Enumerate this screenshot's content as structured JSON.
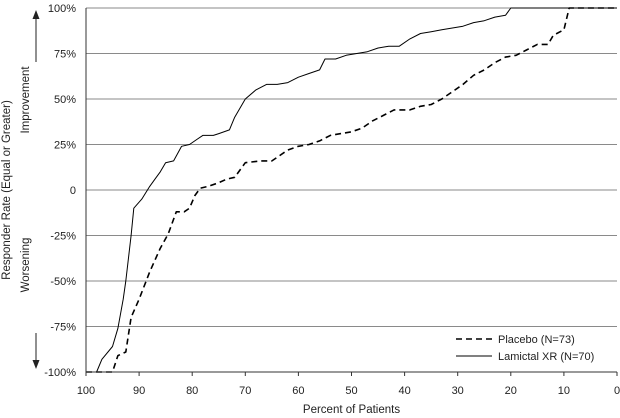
{
  "chart_data": {
    "type": "line",
    "xlabel": "Percent of Patients",
    "ylabel": "Responder Rate (Equal or Greater)",
    "annotations": {
      "upper": "Improvement",
      "lower": "Worsening"
    },
    "xlim": [
      100,
      0
    ],
    "ylim": [
      -100,
      100
    ],
    "x_ticks": [
      "100",
      "90",
      "80",
      "70",
      "60",
      "50",
      "40",
      "30",
      "20",
      "10",
      "0"
    ],
    "y_ticks": [
      "100%",
      "75%",
      "50%",
      "25%",
      "0",
      "-25%",
      "-50%",
      "-75%",
      "-100%"
    ],
    "grid": "horizontal",
    "legend_position": "bottom-right",
    "series": [
      {
        "name": "Placebo (N=73)",
        "style": "dashed",
        "color": "#000000",
        "points": [
          [
            100,
            -100
          ],
          [
            95,
            -100
          ],
          [
            94,
            -91
          ],
          [
            92.5,
            -89
          ],
          [
            91.5,
            -70
          ],
          [
            90,
            -60
          ],
          [
            88,
            -45
          ],
          [
            86,
            -32
          ],
          [
            84.5,
            -24
          ],
          [
            83,
            -12
          ],
          [
            81.5,
            -12
          ],
          [
            80.5,
            -10
          ],
          [
            79.5,
            -3
          ],
          [
            78.5,
            1
          ],
          [
            77,
            2
          ],
          [
            75,
            4
          ],
          [
            73.5,
            6
          ],
          [
            72,
            7
          ],
          [
            70,
            15
          ],
          [
            67,
            16
          ],
          [
            65,
            16
          ],
          [
            62,
            22
          ],
          [
            60,
            24
          ],
          [
            58,
            25
          ],
          [
            56,
            27
          ],
          [
            54,
            30
          ],
          [
            52,
            31
          ],
          [
            50,
            32
          ],
          [
            48,
            34
          ],
          [
            46,
            38
          ],
          [
            44,
            41
          ],
          [
            42,
            44
          ],
          [
            39,
            44
          ],
          [
            37,
            46
          ],
          [
            35,
            47
          ],
          [
            33,
            50
          ],
          [
            31,
            54
          ],
          [
            29,
            58
          ],
          [
            27,
            63
          ],
          [
            25,
            66
          ],
          [
            23,
            70
          ],
          [
            21,
            73
          ],
          [
            19,
            74
          ],
          [
            17,
            77
          ],
          [
            15,
            80
          ],
          [
            13,
            80
          ],
          [
            12,
            85
          ],
          [
            10,
            88
          ],
          [
            9,
            100
          ],
          [
            0,
            100
          ]
        ]
      },
      {
        "name": "Lamictal XR (N=70)",
        "style": "solid",
        "color": "#000000",
        "points": [
          [
            100,
            -100
          ],
          [
            98,
            -100
          ],
          [
            97,
            -93
          ],
          [
            95,
            -86
          ],
          [
            94,
            -76
          ],
          [
            93,
            -60
          ],
          [
            92.5,
            -50
          ],
          [
            91.5,
            -25
          ],
          [
            91,
            -10
          ],
          [
            89.5,
            -5
          ],
          [
            88,
            2
          ],
          [
            87,
            6
          ],
          [
            86,
            10
          ],
          [
            85,
            15
          ],
          [
            83.5,
            16
          ],
          [
            82,
            24
          ],
          [
            80.5,
            25
          ],
          [
            79,
            28
          ],
          [
            78,
            30
          ],
          [
            76,
            30
          ],
          [
            75,
            31
          ],
          [
            73,
            33
          ],
          [
            72,
            40
          ],
          [
            70,
            50
          ],
          [
            68,
            55
          ],
          [
            66,
            58
          ],
          [
            64,
            58
          ],
          [
            62,
            59
          ],
          [
            60,
            62
          ],
          [
            58,
            64
          ],
          [
            56,
            66
          ],
          [
            55,
            72
          ],
          [
            53,
            72
          ],
          [
            51,
            74
          ],
          [
            49,
            75
          ],
          [
            47,
            76
          ],
          [
            45,
            78
          ],
          [
            43,
            79
          ],
          [
            41,
            79
          ],
          [
            39,
            83
          ],
          [
            37,
            86
          ],
          [
            35,
            87
          ],
          [
            33,
            88
          ],
          [
            31,
            89
          ],
          [
            29,
            90
          ],
          [
            27,
            92
          ],
          [
            25,
            93
          ],
          [
            23,
            95
          ],
          [
            21,
            96
          ],
          [
            20,
            100
          ],
          [
            0,
            100
          ]
        ]
      }
    ]
  }
}
